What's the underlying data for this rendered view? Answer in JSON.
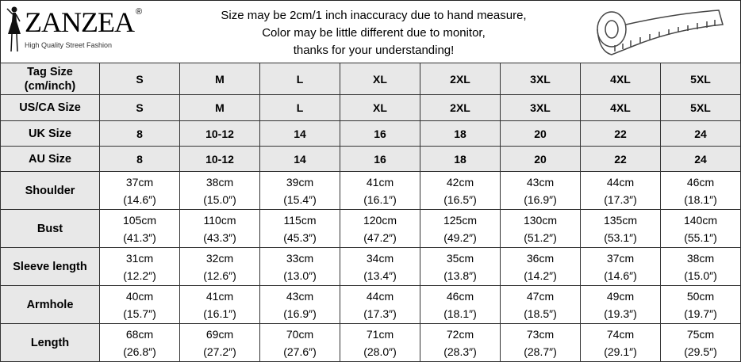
{
  "brand": {
    "name": "ZANZEA",
    "registered": "®",
    "tagline": "High Quality Street Fashion"
  },
  "notice": [
    "Size may be 2cm/1 inch inaccuracy due to hand measure,",
    "Color may be little different due to monitor,",
    "thanks for your understanding!"
  ],
  "icons": {
    "logo": "woman-silhouette-icon",
    "measure": "measuring-tape-icon"
  },
  "size_rows": [
    {
      "label": "Tag Size (cm/inch)",
      "values": [
        "S",
        "M",
        "L",
        "XL",
        "2XL",
        "3XL",
        "4XL",
        "5XL"
      ]
    },
    {
      "label": "US/CA Size",
      "values": [
        "S",
        "M",
        "L",
        "XL",
        "2XL",
        "3XL",
        "4XL",
        "5XL"
      ]
    },
    {
      "label": "UK Size",
      "values": [
        "8",
        "10-12",
        "14",
        "16",
        "18",
        "20",
        "22",
        "24"
      ]
    },
    {
      "label": "AU Size",
      "values": [
        "8",
        "10-12",
        "14",
        "16",
        "18",
        "20",
        "22",
        "24"
      ]
    }
  ],
  "measure_rows": [
    {
      "label": "Shoulder",
      "cm": [
        "37cm",
        "38cm",
        "39cm",
        "41cm",
        "42cm",
        "43cm",
        "44cm",
        "46cm"
      ],
      "inch": [
        "(14.6″)",
        "(15.0″)",
        "(15.4″)",
        "(16.1″)",
        "(16.5″)",
        "(16.9″)",
        "(17.3″)",
        "(18.1″)"
      ]
    },
    {
      "label": "Bust",
      "cm": [
        "105cm",
        "110cm",
        "115cm",
        "120cm",
        "125cm",
        "130cm",
        "135cm",
        "140cm"
      ],
      "inch": [
        "(41.3″)",
        "(43.3″)",
        "(45.3″)",
        "(47.2″)",
        "(49.2″)",
        "(51.2″)",
        "(53.1″)",
        "(55.1″)"
      ]
    },
    {
      "label": "Sleeve length",
      "cm": [
        "31cm",
        "32cm",
        "33cm",
        "34cm",
        "35cm",
        "36cm",
        "37cm",
        "38cm"
      ],
      "inch": [
        "(12.2″)",
        "(12.6″)",
        "(13.0″)",
        "(13.4″)",
        "(13.8″)",
        "(14.2″)",
        "(14.6″)",
        "(15.0″)"
      ]
    },
    {
      "label": "Armhole",
      "cm": [
        "40cm",
        "41cm",
        "43cm",
        "44cm",
        "46cm",
        "47cm",
        "49cm",
        "50cm"
      ],
      "inch": [
        "(15.7″)",
        "(16.1″)",
        "(16.9″)",
        "(17.3″)",
        "(18.1″)",
        "(18.5″)",
        "(19.3″)",
        "(19.7″)"
      ]
    },
    {
      "label": "Length",
      "cm": [
        "68cm",
        "69cm",
        "70cm",
        "71cm",
        "72cm",
        "73cm",
        "74cm",
        "75cm"
      ],
      "inch": [
        "(26.8″)",
        "(27.2″)",
        "(27.6″)",
        "(28.0″)",
        "(28.3″)",
        "(28.7″)",
        "(29.1″)",
        "(29.5″)"
      ]
    }
  ]
}
